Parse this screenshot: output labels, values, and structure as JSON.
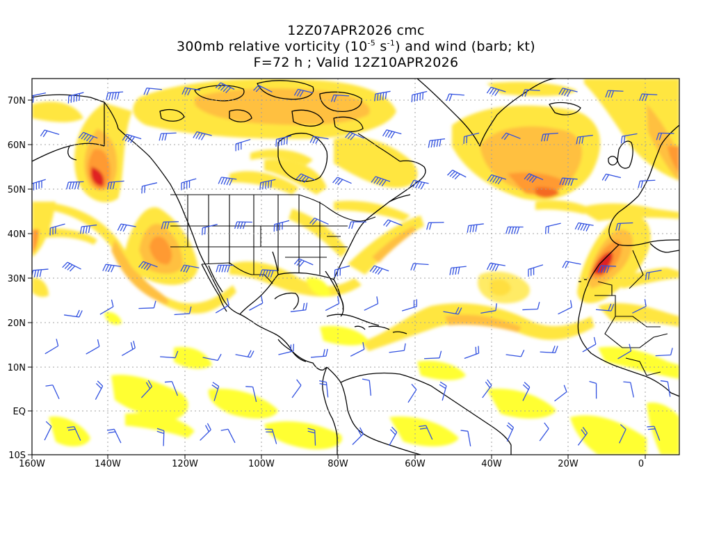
{
  "header": {
    "line1": "12Z07APR2026 cmc",
    "line2_prefix": "300mb relative vorticity (10",
    "line2_exp1": "-5",
    "line2_mid": " s",
    "line2_exp2": "-1",
    "line2_suffix": ") and wind (barb; kt)",
    "line3": "F=72 h ; Valid 12Z10APR2026"
  },
  "axes": {
    "lon_labels": [
      "160W",
      "140W",
      "120W",
      "100W",
      "80W",
      "60W",
      "40W",
      "20W",
      "0"
    ],
    "lat_labels": [
      "70N",
      "60N",
      "50N",
      "40N",
      "30N",
      "20N",
      "10N",
      "EQ",
      "10S"
    ]
  },
  "colors": {
    "shade_light": "#ffff33",
    "shade_yellow": "#ffe640",
    "shade_gold": "#ffc040",
    "shade_orange": "#ff9a30",
    "shade_dark_orange": "#f46a20",
    "shade_red": "#e02020",
    "barb_color": "#3050e0",
    "coast_color": "#000000",
    "grid_color": "#a0a0a0"
  }
}
